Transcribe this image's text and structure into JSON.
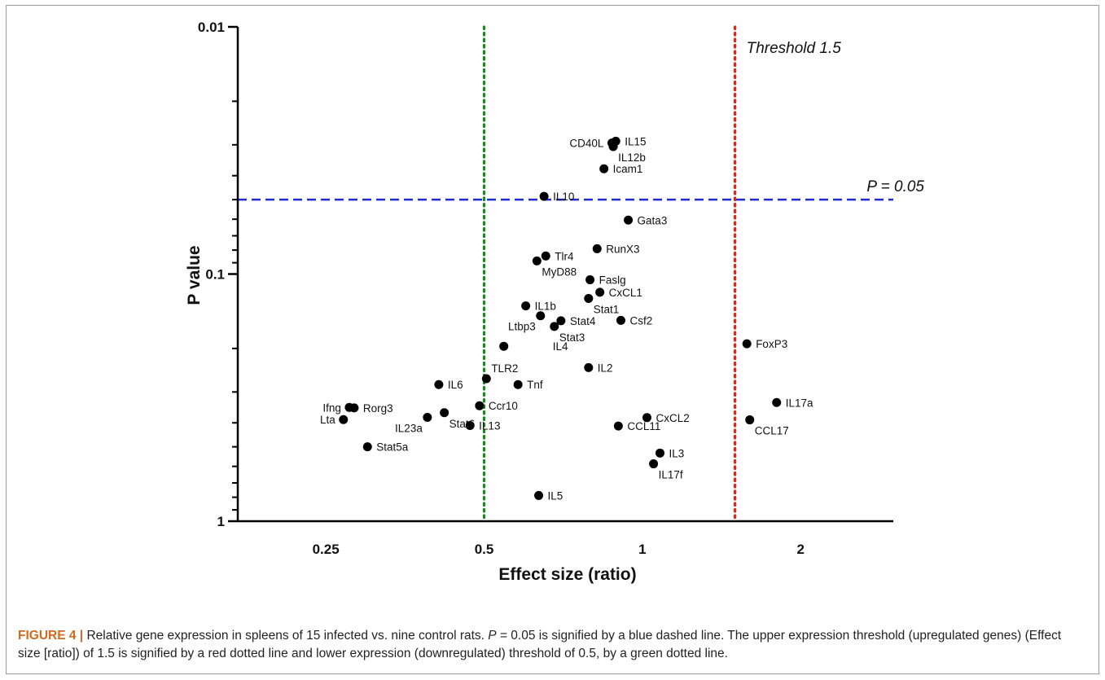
{
  "chart_data": {
    "type": "scatter",
    "title": "",
    "xlabel": "Effect size (ratio)",
    "ylabel": "P value",
    "x_scale": "log2",
    "y_scale": "log10-reversed",
    "xlim": [
      0.17,
      3.0
    ],
    "ylim": [
      0.01,
      1
    ],
    "x_ticks": [
      {
        "value": 0.25,
        "label": "0.25"
      },
      {
        "value": 0.5,
        "label": "0.5"
      },
      {
        "value": 1,
        "label": "1"
      },
      {
        "value": 2,
        "label": "2"
      }
    ],
    "y_ticks": [
      {
        "value": 0.01,
        "label": "0.01"
      },
      {
        "value": 0.1,
        "label": "0.1"
      },
      {
        "value": 1,
        "label": "1"
      }
    ],
    "grid": false,
    "reference_lines": [
      {
        "orientation": "horizontal",
        "value": 0.05,
        "style": "dashed",
        "color": "#1f2bd8",
        "label": "P = 0.05"
      },
      {
        "orientation": "vertical",
        "value": 1.5,
        "style": "dotted",
        "color": "#e8201c",
        "label": "Threshold 1.5"
      },
      {
        "orientation": "vertical",
        "value": 0.5,
        "style": "dotted",
        "color": "#178a1e",
        "label": ""
      }
    ],
    "points": [
      {
        "name": "IL15",
        "x": 0.89,
        "y": 0.029,
        "label_pos": "right"
      },
      {
        "name": "CD40L",
        "x": 0.875,
        "y": 0.0295,
        "label_pos": "left"
      },
      {
        "name": "IL12b",
        "x": 0.88,
        "y": 0.0305,
        "label_pos": "right-down"
      },
      {
        "name": "Icam1",
        "x": 0.845,
        "y": 0.0375,
        "label_pos": "right"
      },
      {
        "name": "IL10",
        "x": 0.65,
        "y": 0.0485,
        "label_pos": "right"
      },
      {
        "name": "Gata3",
        "x": 0.94,
        "y": 0.0605,
        "label_pos": "right"
      },
      {
        "name": "RunX3",
        "x": 0.82,
        "y": 0.079,
        "label_pos": "right"
      },
      {
        "name": "Tlr4",
        "x": 0.655,
        "y": 0.0845,
        "label_pos": "right"
      },
      {
        "name": "MyD88",
        "x": 0.63,
        "y": 0.0885,
        "label_pos": "right-down"
      },
      {
        "name": "Faslg",
        "x": 0.795,
        "y": 0.1055,
        "label_pos": "right"
      },
      {
        "name": "CxCL1",
        "x": 0.83,
        "y": 0.1185,
        "label_pos": "right"
      },
      {
        "name": "Stat1",
        "x": 0.79,
        "y": 0.1255,
        "label_pos": "right-down"
      },
      {
        "name": "IL1b",
        "x": 0.6,
        "y": 0.1345,
        "label_pos": "right"
      },
      {
        "name": "Ltbp3",
        "x": 0.64,
        "y": 0.1475,
        "label_pos": "left-down"
      },
      {
        "name": "Stat4",
        "x": 0.7,
        "y": 0.1545,
        "label_pos": "right"
      },
      {
        "name": "Csf2",
        "x": 0.91,
        "y": 0.154,
        "label_pos": "right"
      },
      {
        "name": "Stat3",
        "x": 0.68,
        "y": 0.163,
        "label_pos": "right-down"
      },
      {
        "name": "FoxP3",
        "x": 1.58,
        "y": 0.1915,
        "label_pos": "right"
      },
      {
        "name": "IL4",
        "x": 0.545,
        "y": 0.196,
        "label_pos": "right-far"
      },
      {
        "name": "IL2",
        "x": 0.79,
        "y": 0.239,
        "label_pos": "right"
      },
      {
        "name": "TLR2",
        "x": 0.505,
        "y": 0.265,
        "label_pos": "right-up"
      },
      {
        "name": "IL6",
        "x": 0.41,
        "y": 0.28,
        "label_pos": "right"
      },
      {
        "name": "Tnf",
        "x": 0.58,
        "y": 0.28,
        "label_pos": "right"
      },
      {
        "name": "IL17a",
        "x": 1.8,
        "y": 0.331,
        "label_pos": "right"
      },
      {
        "name": "Ifng",
        "x": 0.277,
        "y": 0.3465,
        "label_pos": "left"
      },
      {
        "name": "Rorg3",
        "x": 0.283,
        "y": 0.348,
        "label_pos": "right"
      },
      {
        "name": "Ccr10",
        "x": 0.49,
        "y": 0.341,
        "label_pos": "right"
      },
      {
        "name": "Stat6",
        "x": 0.42,
        "y": 0.364,
        "label_pos": "right-down"
      },
      {
        "name": "IL23a",
        "x": 0.39,
        "y": 0.38,
        "label_pos": "left-down"
      },
      {
        "name": "CxCL2",
        "x": 1.02,
        "y": 0.381,
        "label_pos": "right"
      },
      {
        "name": "Lta",
        "x": 0.27,
        "y": 0.388,
        "label_pos": "left"
      },
      {
        "name": "CCL17",
        "x": 1.6,
        "y": 0.389,
        "label_pos": "right-down"
      },
      {
        "name": "IL13",
        "x": 0.47,
        "y": 0.41,
        "label_pos": "right"
      },
      {
        "name": "CCL11",
        "x": 0.9,
        "y": 0.412,
        "label_pos": "right"
      },
      {
        "name": "Stat5a",
        "x": 0.3,
        "y": 0.5,
        "label_pos": "right"
      },
      {
        "name": "IL3",
        "x": 1.08,
        "y": 0.53,
        "label_pos": "right"
      },
      {
        "name": "IL17f",
        "x": 1.05,
        "y": 0.586,
        "label_pos": "right-down"
      },
      {
        "name": "IL5",
        "x": 0.635,
        "y": 0.787,
        "label_pos": "right"
      }
    ]
  },
  "caption": {
    "head": "FIGURE 4 |",
    "part1": " Relative gene expression in spleens of 15 infected vs. nine control rats. ",
    "p_symbol": "P",
    "part2": " = 0.05 is signified by a blue dashed line. The upper expression threshold (upregulated genes) (Effect size [ratio]) of 1.5 is signified by a red dotted line and lower expression (downregulated) threshold of 0.5, by a green dotted line."
  }
}
